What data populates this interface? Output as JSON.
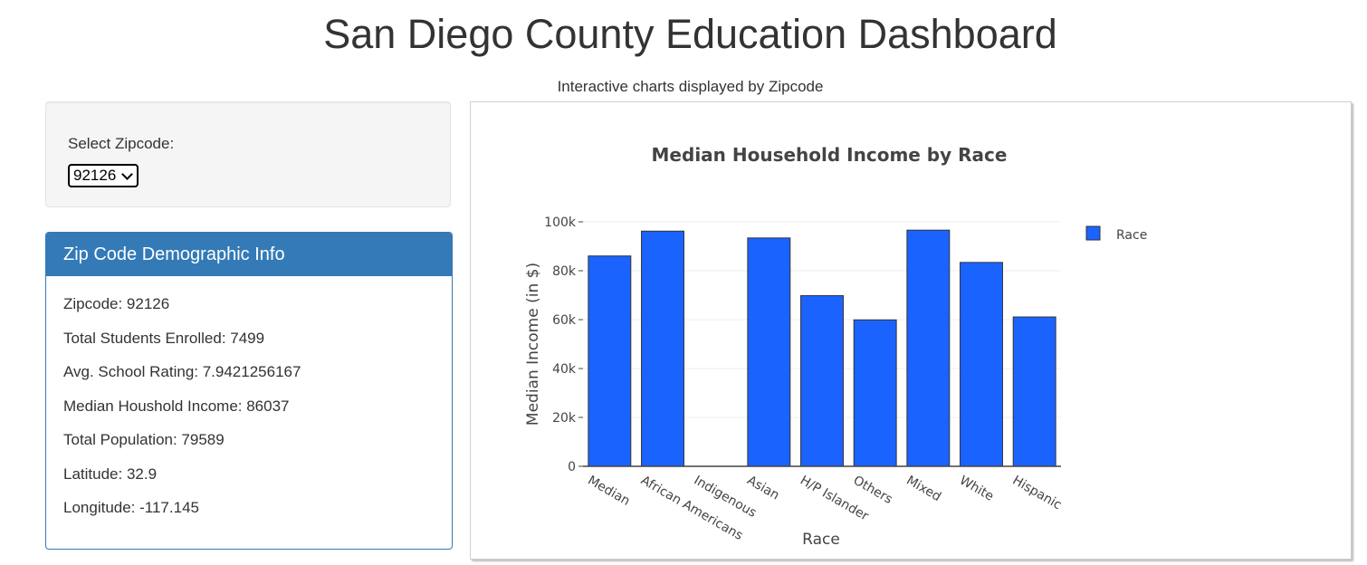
{
  "header": {
    "title": "San Diego County Education Dashboard",
    "subtitle": "Interactive charts displayed by Zipcode"
  },
  "selector": {
    "label": "Select Zipcode:",
    "selected": "92126"
  },
  "info": {
    "heading": "Zip Code Demographic Info",
    "rows": [
      "Zipcode: 92126",
      "Total Students Enrolled: 7499",
      "Avg. School Rating: 7.9421256167",
      "Median Houshold Income: 86037",
      "Total Population: 79589",
      "Latitude: 32.9",
      "Longitude: -117.145"
    ]
  },
  "chart_data": {
    "type": "bar",
    "title": "Median Household Income by Race",
    "xlabel": "Race",
    "ylabel": "Median Income (in $)",
    "categories": [
      "Median",
      "African Americans",
      "Indigenous",
      "Asian",
      "H/P Islander",
      "Others",
      "Mixed",
      "White",
      "Hispanic"
    ],
    "series": [
      {
        "name": "Race",
        "values": [
          86037,
          96200,
          0,
          93400,
          69800,
          59900,
          96600,
          83400,
          61100
        ]
      }
    ],
    "ylim": [
      0,
      100000
    ],
    "yticks": [
      0,
      20000,
      40000,
      60000,
      80000,
      100000
    ],
    "ytick_labels": [
      "0",
      "20k",
      "40k",
      "60k",
      "80k",
      "100k"
    ],
    "legend_position": "top-right",
    "grid": true,
    "bar_color": "#1b63ff"
  }
}
